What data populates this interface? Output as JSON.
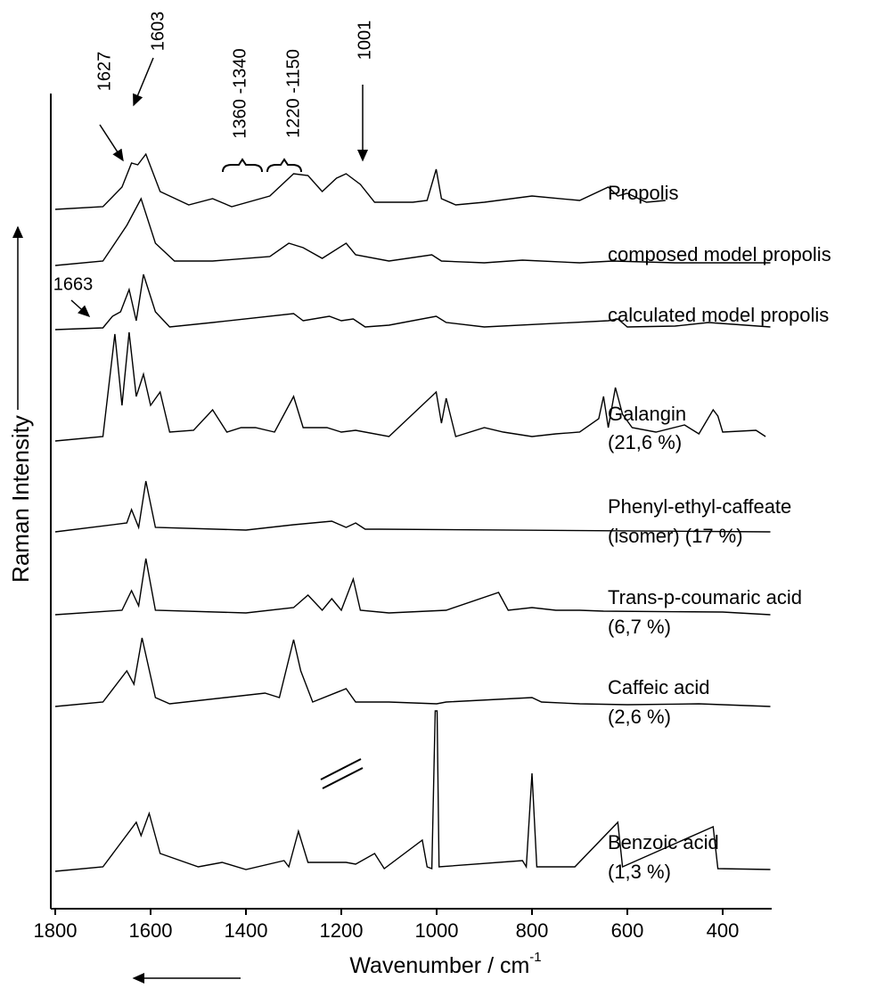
{
  "chart_data": {
    "type": "line",
    "x_label": "Wavenumber / cm",
    "x_label_sup": "-1",
    "y_label": "Raman Intensity",
    "xlim": [
      1800,
      300
    ],
    "xticks": [
      1800,
      1600,
      1400,
      1200,
      1000,
      800,
      600,
      400
    ],
    "color": "#000000",
    "annotations": [
      "1627",
      "1603",
      "1360 -1340",
      "1220 -1150",
      "1001",
      "1663"
    ],
    "series": [
      {
        "name": "Propolis",
        "x": [
          1800,
          1700,
          1660,
          1640,
          1627,
          1610,
          1580,
          1520,
          1470,
          1430,
          1350,
          1300,
          1270,
          1240,
          1210,
          1190,
          1160,
          1130,
          1050,
          1020,
          1001,
          990,
          960,
          900,
          800,
          700,
          640,
          620,
          600,
          560,
          520
        ],
        "values": [
          0,
          3,
          25,
          52,
          50,
          62,
          20,
          5,
          12,
          3,
          15,
          40,
          38,
          20,
          35,
          40,
          28,
          8,
          8,
          10,
          45,
          12,
          5,
          8,
          15,
          10,
          25,
          15,
          18,
          8,
          10
        ]
      },
      {
        "name": "composed model propolis",
        "x": [
          1800,
          1700,
          1650,
          1620,
          1590,
          1550,
          1470,
          1350,
          1310,
          1280,
          1240,
          1190,
          1170,
          1100,
          1010,
          990,
          900,
          820,
          700,
          630,
          500,
          300
        ],
        "values": [
          0,
          5,
          45,
          75,
          25,
          5,
          5,
          10,
          25,
          20,
          8,
          25,
          12,
          5,
          12,
          5,
          3,
          6,
          3,
          5,
          3,
          3
        ]
      },
      {
        "name": "calculated model propolis",
        "x": [
          1800,
          1700,
          1680,
          1663,
          1645,
          1630,
          1615,
          1590,
          1560,
          1470,
          1300,
          1280,
          1225,
          1200,
          1175,
          1150,
          1100,
          1001,
          980,
          900,
          640,
          620,
          600,
          500,
          430,
          300
        ],
        "values": [
          0,
          2,
          15,
          20,
          45,
          10,
          62,
          20,
          3,
          8,
          18,
          10,
          15,
          10,
          12,
          3,
          5,
          15,
          8,
          3,
          10,
          12,
          3,
          4,
          8,
          3
        ]
      },
      {
        "name": "Galangin",
        "share": "(21,6 %)",
        "x": [
          1800,
          1700,
          1675,
          1660,
          1645,
          1630,
          1615,
          1600,
          1580,
          1560,
          1510,
          1470,
          1440,
          1410,
          1380,
          1340,
          1300,
          1280,
          1230,
          1200,
          1170,
          1100,
          1001,
          990,
          980,
          960,
          900,
          860,
          800,
          750,
          700,
          660,
          650,
          640,
          625,
          610,
          590,
          540,
          480,
          450,
          420,
          410,
          400,
          330,
          310
        ],
        "values": [
          0,
          5,
          120,
          40,
          122,
          50,
          75,
          40,
          55,
          10,
          12,
          35,
          10,
          15,
          15,
          10,
          50,
          15,
          15,
          10,
          12,
          5,
          55,
          20,
          48,
          5,
          15,
          10,
          5,
          8,
          10,
          25,
          50,
          15,
          60,
          30,
          15,
          10,
          18,
          8,
          35,
          28,
          10,
          12,
          5
        ]
      },
      {
        "name": "Phenyl-ethyl-caffeate",
        "share": "(isomer) (17 %)",
        "x": [
          1800,
          1650,
          1640,
          1625,
          1610,
          1590,
          1400,
          1300,
          1220,
          1190,
          1170,
          1150,
          1120,
          300
        ],
        "values": [
          0,
          10,
          25,
          5,
          57,
          5,
          2,
          8,
          12,
          5,
          10,
          3,
          3,
          0
        ]
      },
      {
        "name": "Trans-p-coumaric acid",
        "share": "(6,7 %)",
        "x": [
          1800,
          1660,
          1640,
          1625,
          1610,
          1590,
          1400,
          1300,
          1270,
          1240,
          1220,
          1200,
          1175,
          1160,
          1100,
          980,
          870,
          850,
          800,
          750,
          700,
          650,
          400,
          300
        ],
        "values": [
          0,
          5,
          27,
          10,
          63,
          5,
          2,
          8,
          22,
          5,
          18,
          5,
          40,
          5,
          2,
          5,
          25,
          5,
          8,
          5,
          5,
          4,
          3,
          0
        ]
      },
      {
        "name": "Caffeic acid",
        "share": "(2,6 %)",
        "x": [
          1800,
          1700,
          1650,
          1635,
          1618,
          1590,
          1560,
          1360,
          1330,
          1300,
          1285,
          1260,
          1190,
          1170,
          1100,
          1000,
          980,
          800,
          780,
          700,
          600,
          450,
          300
        ],
        "values": [
          0,
          5,
          40,
          25,
          77,
          10,
          3,
          15,
          10,
          75,
          40,
          5,
          20,
          5,
          5,
          3,
          5,
          10,
          5,
          3,
          2,
          3,
          0
        ]
      },
      {
        "name": "Benzoic acid",
        "share": "(1,3 %)",
        "x": [
          1800,
          1700,
          1630,
          1620,
          1603,
          1580,
          1500,
          1450,
          1400,
          1320,
          1310,
          1290,
          1270,
          1190,
          1170,
          1130,
          1110,
          1030,
          1020,
          1010,
          1003,
          999,
          995,
          820,
          812,
          800,
          790,
          710,
          620,
          610,
          420,
          410,
          300
        ],
        "values": [
          0,
          5,
          55,
          40,
          65,
          20,
          5,
          10,
          2,
          12,
          5,
          45,
          10,
          10,
          8,
          20,
          3,
          35,
          5,
          3,
          180,
          180,
          5,
          12,
          5,
          110,
          5,
          5,
          55,
          5,
          50,
          3,
          2
        ]
      }
    ]
  }
}
